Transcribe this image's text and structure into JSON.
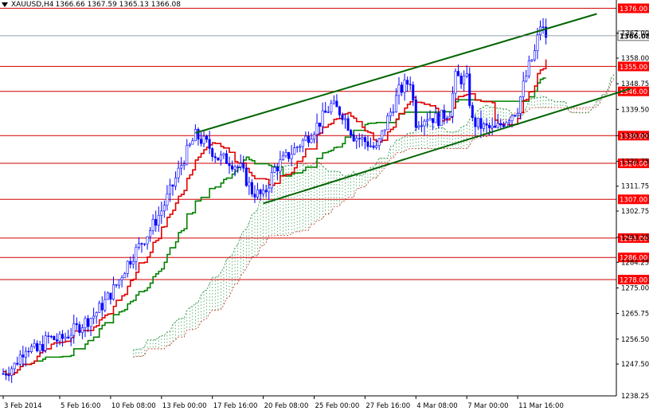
{
  "header": {
    "symbol": "XAUUSD,H4",
    "ohlc": "1366.66 1367.59 1365.13 1366.08"
  },
  "chart_data": {
    "type": "candlestick",
    "instrument": "XAUUSD",
    "timeframe": "H4",
    "ylim": [
      1236,
      1379
    ],
    "y_ticks": [
      1247.5,
      1256.5,
      1265.75,
      1275.0,
      1284.25,
      1293.25,
      1302.75,
      1311.75,
      1320.75,
      1330.0,
      1339.5,
      1348.75,
      1358.0,
      1367.0
    ],
    "y_tick_labels": [
      "1247.50",
      "1256.50",
      "1265.75",
      "1275.00",
      "1284.25",
      "1293.25",
      "1302.75",
      "1311.75",
      "1320.75",
      "1330.00",
      "1339.50",
      "1348.75",
      "1358.00",
      "1367.00"
    ],
    "bottom_tick_label": "1238.25",
    "x_ticks": [
      {
        "bar": 0,
        "label": "3 Feb 2014"
      },
      {
        "bar": 20,
        "label": "5 Feb 16:00"
      },
      {
        "bar": 38,
        "label": "10 Feb 08:00"
      },
      {
        "bar": 56,
        "label": "13 Feb 00:00"
      },
      {
        "bar": 74,
        "label": "17 Feb 16:00"
      },
      {
        "bar": 92,
        "label": "20 Feb 08:00"
      },
      {
        "bar": 110,
        "label": "25 Feb 00:00"
      },
      {
        "bar": 128,
        "label": "27 Feb 16:00"
      },
      {
        "bar": 146,
        "label": "4 Mar 08:00"
      },
      {
        "bar": 164,
        "label": "7 Mar 00:00"
      },
      {
        "bar": 182,
        "label": "11 Mar 16:00"
      }
    ],
    "horizontal_levels": [
      1376.0,
      1355.0,
      1346.0,
      1330.0,
      1320.0,
      1307.0,
      1293.0,
      1286.0,
      1278.0
    ],
    "horizontal_level_labels": [
      "1376.00",
      "1355.00",
      "1346.00",
      "1330.00",
      "1320.00",
      "1307.00",
      "1293.00",
      "1286.00",
      "1278.00"
    ],
    "current_price": 1366.08,
    "current_price_label": "1366.08",
    "trendlines": [
      {
        "from": {
          "bar": 68,
          "price": 1331
        },
        "to": {
          "bar": 210,
          "price": 1374
        }
      },
      {
        "from": {
          "bar": 92,
          "price": 1305.5
        },
        "to": {
          "bar": 222,
          "price": 1347
        }
      }
    ],
    "candle_anchors": [
      [
        0,
        1244
      ],
      [
        4,
        1247
      ],
      [
        8,
        1254
      ],
      [
        12,
        1252
      ],
      [
        16,
        1257
      ],
      [
        20,
        1256
      ],
      [
        24,
        1259
      ],
      [
        28,
        1262
      ],
      [
        32,
        1265
      ],
      [
        36,
        1270
      ],
      [
        40,
        1276
      ],
      [
        44,
        1284
      ],
      [
        48,
        1290
      ],
      [
        52,
        1296
      ],
      [
        56,
        1303
      ],
      [
        60,
        1312
      ],
      [
        64,
        1322
      ],
      [
        68,
        1330
      ],
      [
        72,
        1327
      ],
      [
        76,
        1322
      ],
      [
        80,
        1321
      ],
      [
        84,
        1318
      ],
      [
        88,
        1310
      ],
      [
        92,
        1308
      ],
      [
        96,
        1318
      ],
      [
        100,
        1322
      ],
      [
        104,
        1326
      ],
      [
        108,
        1330
      ],
      [
        112,
        1335
      ],
      [
        116,
        1341
      ],
      [
        120,
        1338
      ],
      [
        124,
        1330
      ],
      [
        128,
        1328
      ],
      [
        132,
        1325
      ],
      [
        136,
        1336
      ],
      [
        140,
        1346
      ],
      [
        144,
        1350
      ],
      [
        146,
        1335
      ],
      [
        150,
        1337
      ],
      [
        154,
        1336
      ],
      [
        158,
        1339
      ],
      [
        160,
        1351
      ],
      [
        164,
        1350
      ],
      [
        166,
        1335
      ],
      [
        170,
        1333
      ],
      [
        174,
        1332
      ],
      [
        178,
        1336
      ],
      [
        182,
        1340
      ],
      [
        184,
        1348
      ],
      [
        186,
        1355
      ],
      [
        188,
        1360
      ],
      [
        190,
        1370
      ],
      [
        192,
        1366
      ]
    ],
    "ichimoku": {
      "tenkan_color": "#e00000",
      "kijun_color": "#008000",
      "cloud_colors": [
        "#c03020",
        "#209040"
      ]
    },
    "colors": {
      "candle": "#0000ff",
      "level_line": "#d00000",
      "trendline": "#006400",
      "price_line": "#708090"
    }
  }
}
